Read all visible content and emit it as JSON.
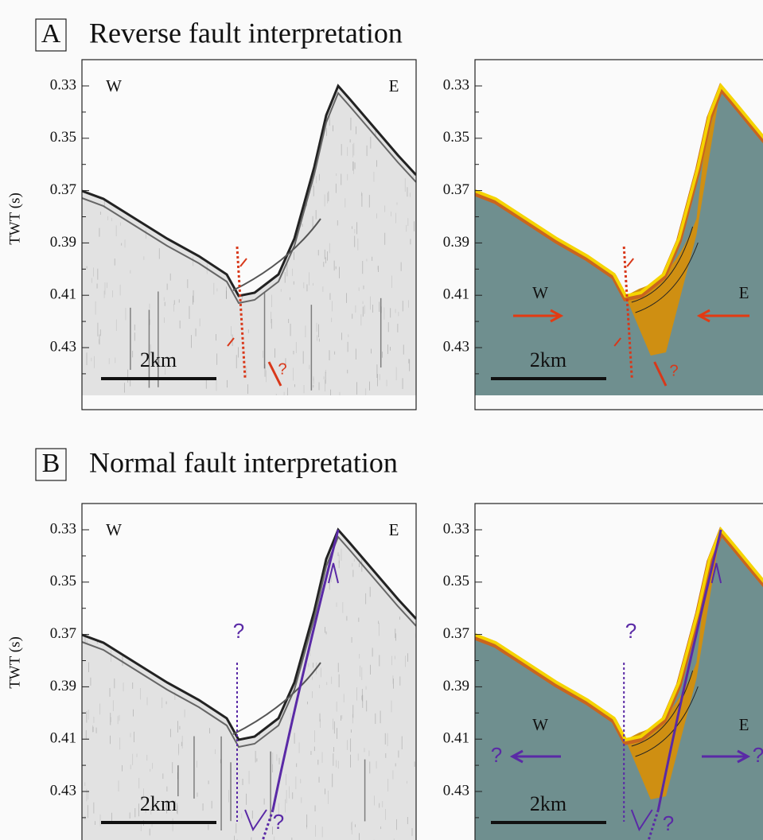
{
  "figure": {
    "panels": [
      {
        "letter": "A",
        "title": "Reverse fault interpretation",
        "axis_label": "TWT (s)",
        "ticks": [
          "0.33",
          "0.35",
          "0.37",
          "0.39",
          "0.41",
          "0.43"
        ],
        "seismic": {
          "west": "W",
          "east": "E",
          "scale": "2km",
          "marks": [
            "?"
          ]
        },
        "interpretation": {
          "west": "W",
          "east": "E",
          "scale": "2km",
          "marks": [
            "?"
          ]
        }
      },
      {
        "letter": "B",
        "title": "Normal fault interpretation",
        "axis_label": "TWT (s)",
        "ticks": [
          "0.33",
          "0.35",
          "0.37",
          "0.39",
          "0.41",
          "0.43"
        ],
        "seismic": {
          "west": "W",
          "east": "E",
          "scale": "2km",
          "marks": [
            "?",
            "?"
          ]
        },
        "interpretation": {
          "west": "W",
          "east": "E",
          "scale": "2km",
          "marks": [
            "?",
            "?",
            "?",
            "?"
          ]
        }
      }
    ]
  }
}
